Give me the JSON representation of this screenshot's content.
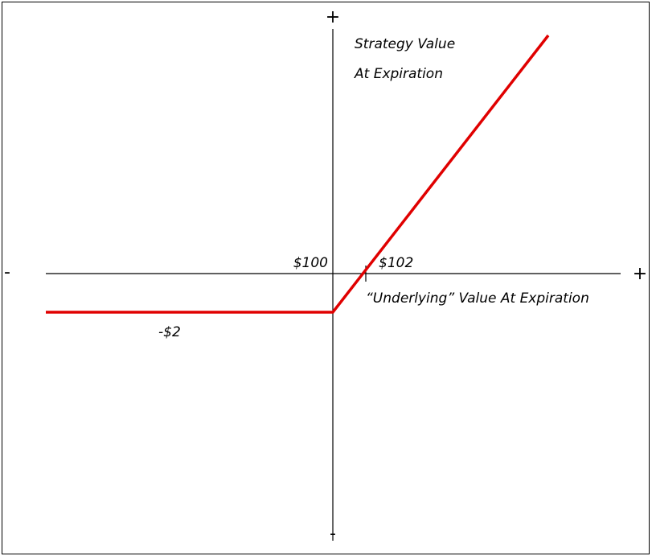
{
  "y_axis": {
    "positive": "+",
    "negative": "-",
    "label_line1": "Strategy Value",
    "label_line2": "At Expiration"
  },
  "x_axis": {
    "positive": "+",
    "negative": "-",
    "label": "“Underlying” Value At Expiration"
  },
  "annotations": {
    "strike": "$100",
    "breakeven": "$102",
    "max_loss": "-$2"
  }
}
